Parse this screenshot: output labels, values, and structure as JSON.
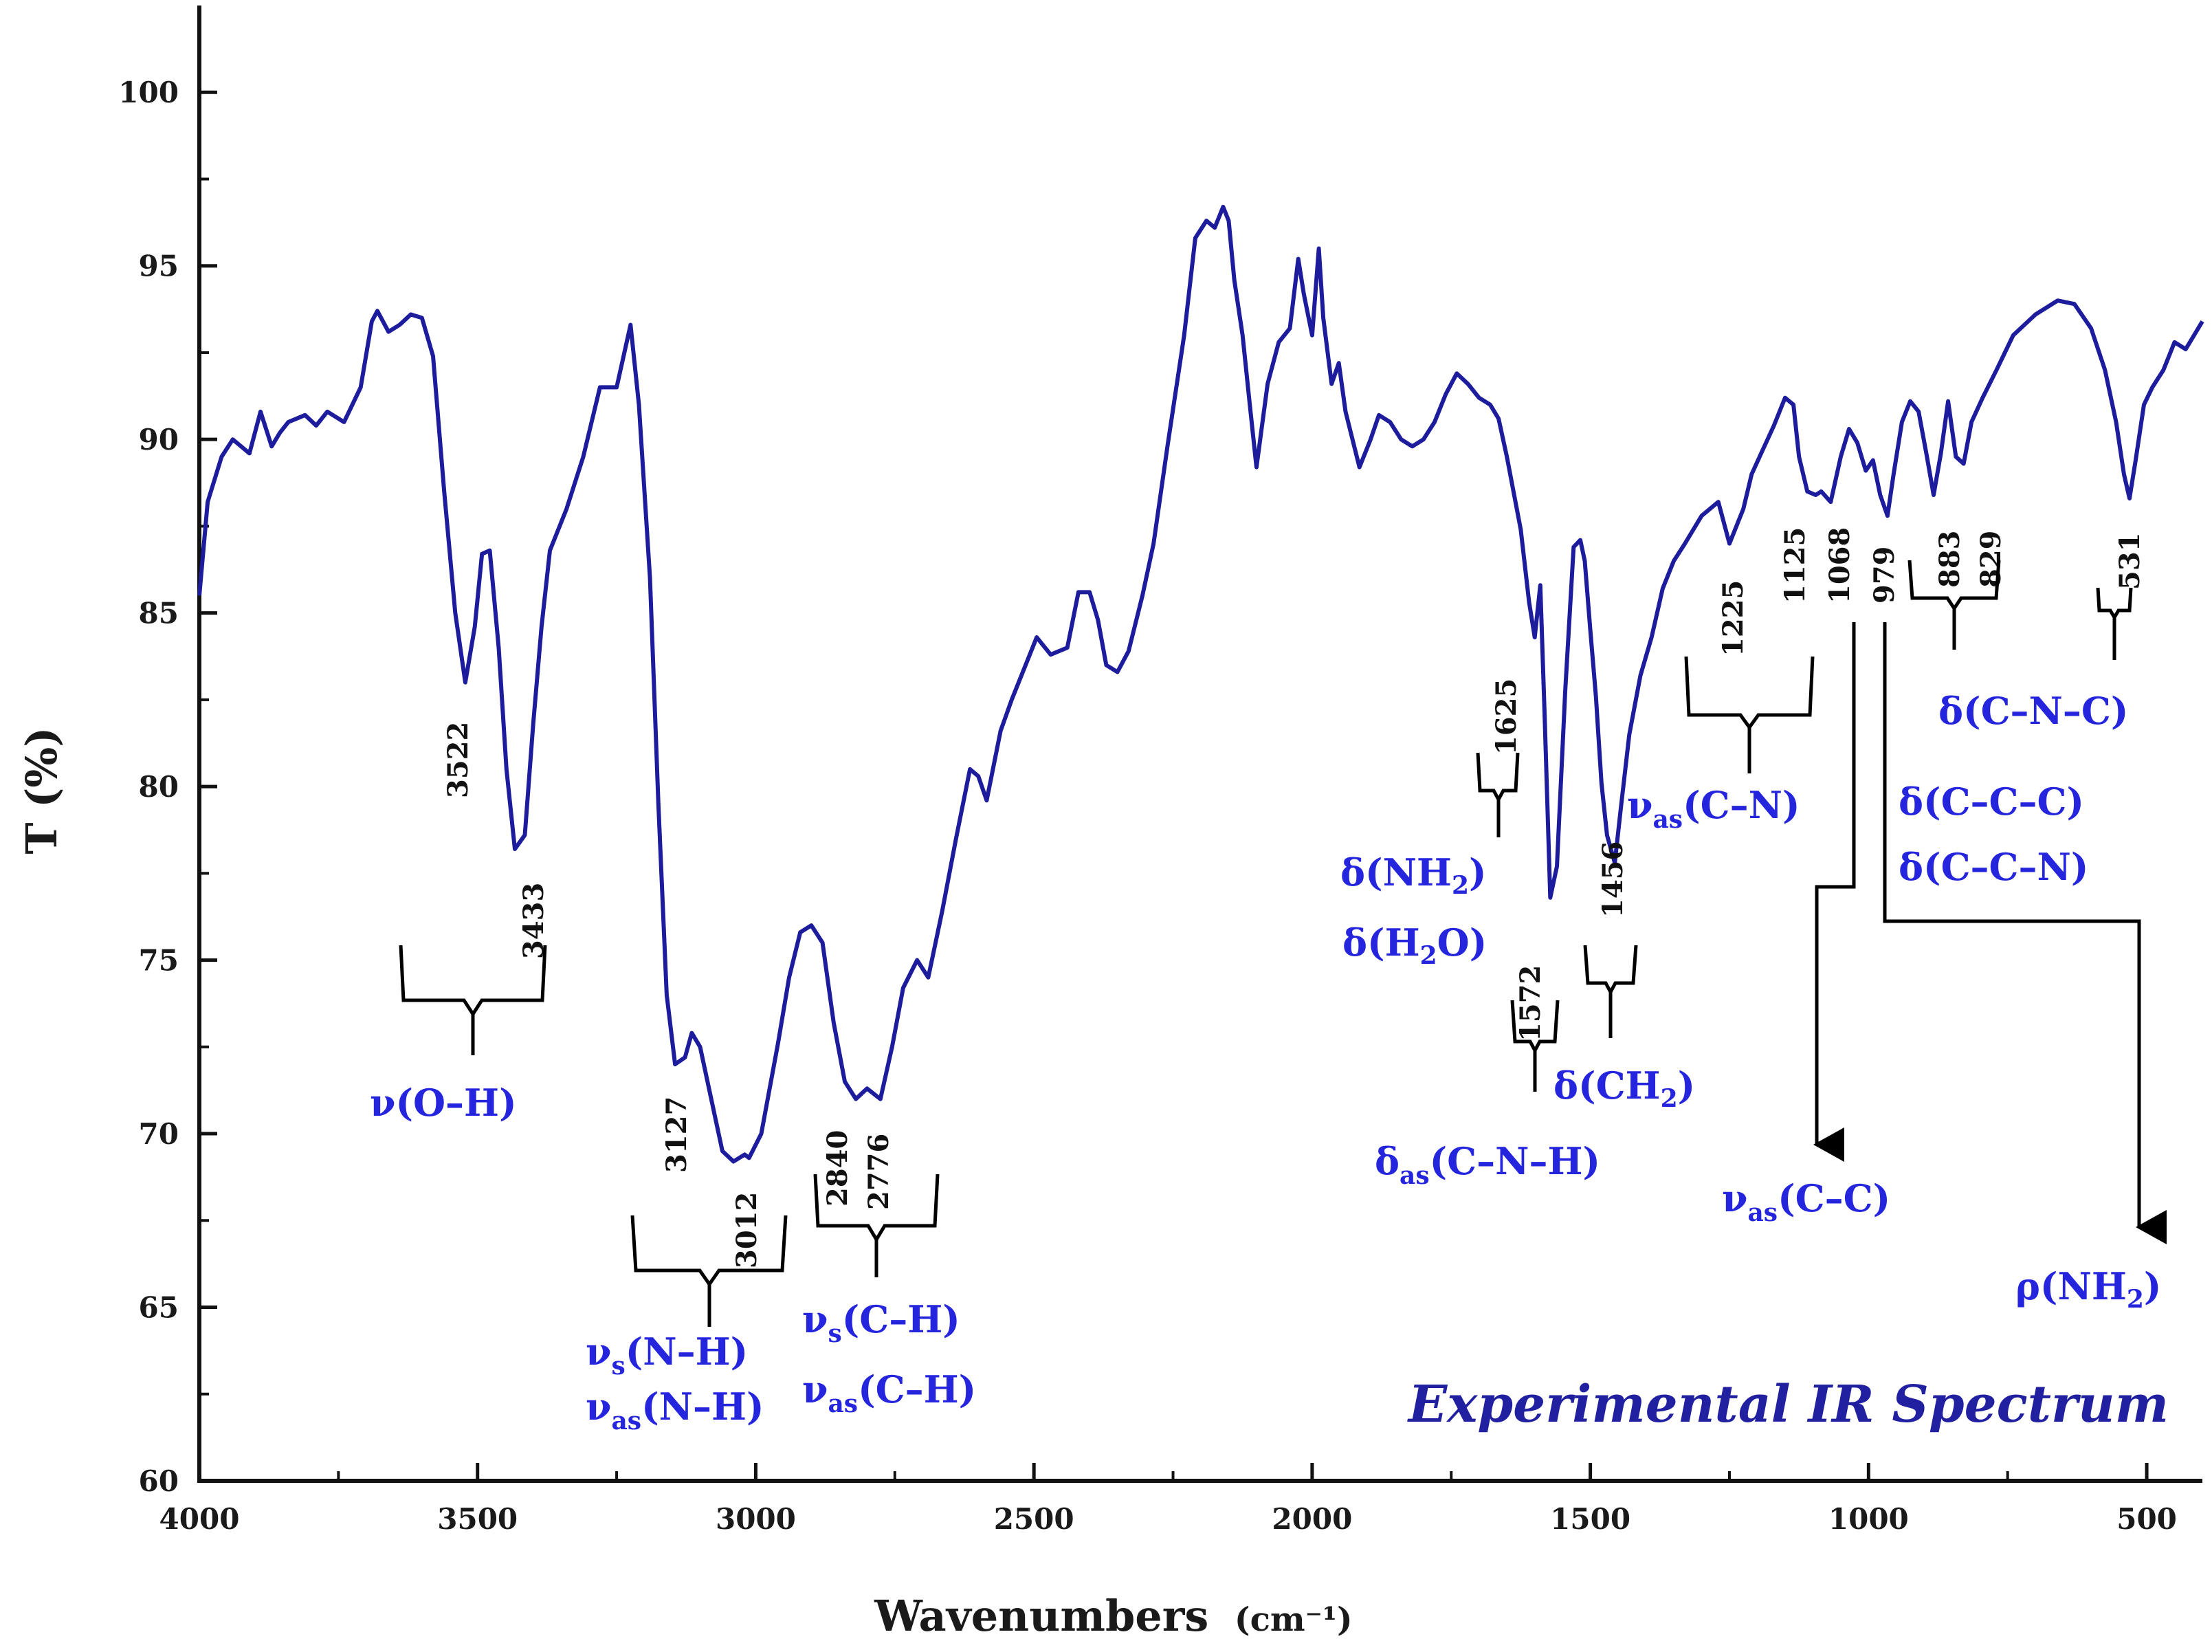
{
  "chart_data": {
    "type": "line",
    "title": "Experimental IR Spectrum",
    "xlabel": "Wavenumbers",
    "xlabel_unit": "(cm⁻¹)",
    "ylabel": "T (%)",
    "xlim": [
      4000,
      400
    ],
    "ylim": [
      60,
      102.5
    ],
    "x_ticks": [
      4000,
      3500,
      3000,
      2500,
      2000,
      1500,
      1000,
      500
    ],
    "y_ticks": [
      60,
      65,
      70,
      75,
      80,
      85,
      90,
      95,
      100
    ],
    "series": [
      {
        "name": "Experimental IR Spectrum",
        "color": "#1c1c9c",
        "x": [
          4000,
          3985,
          3960,
          3940,
          3910,
          3890,
          3880,
          3870,
          3855,
          3840,
          3810,
          3790,
          3770,
          3740,
          3710,
          3690,
          3680,
          3660,
          3640,
          3620,
          3600,
          3580,
          3560,
          3540,
          3522,
          3505,
          3492,
          3478,
          3462,
          3448,
          3433,
          3415,
          3400,
          3385,
          3370,
          3340,
          3310,
          3280,
          3250,
          3225,
          3210,
          3190,
          3175,
          3160,
          3145,
          3127,
          3115,
          3100,
          3080,
          3060,
          3040,
          3020,
          3012,
          2990,
          2960,
          2940,
          2920,
          2900,
          2880,
          2860,
          2840,
          2820,
          2800,
          2776,
          2755,
          2735,
          2710,
          2690,
          2665,
          2640,
          2615,
          2600,
          2585,
          2560,
          2540,
          2510,
          2495,
          2470,
          2440,
          2420,
          2400,
          2385,
          2370,
          2350,
          2330,
          2305,
          2285,
          2260,
          2230,
          2210,
          2190,
          2175,
          2160,
          2150,
          2140,
          2125,
          2112,
          2100,
          2080,
          2060,
          2040,
          2025,
          2015,
          2000,
          1988,
          1980,
          1965,
          1952,
          1940,
          1915,
          1895,
          1880,
          1860,
          1840,
          1820,
          1800,
          1780,
          1760,
          1740,
          1720,
          1700,
          1680,
          1665,
          1650,
          1625,
          1610,
          1600,
          1590,
          1582,
          1572,
          1560,
          1545,
          1530,
          1518,
          1510,
          1500,
          1490,
          1480,
          1470,
          1456,
          1445,
          1430,
          1410,
          1390,
          1370,
          1350,
          1330,
          1300,
          1270,
          1250,
          1225,
          1210,
          1190,
          1170,
          1150,
          1135,
          1125,
          1110,
          1095,
          1085,
          1068,
          1050,
          1035,
          1020,
          1005,
          992,
          979,
          966,
          955,
          940,
          925,
          910,
          895,
          883,
          870,
          857,
          843,
          829,
          815,
          795,
          770,
          740,
          700,
          660,
          630,
          600,
          575,
          555,
          541,
          531,
          520,
          505,
          490,
          470,
          450,
          430,
          415,
          400
        ],
        "y": [
          85.5,
          88.2,
          89.5,
          90.0,
          89.6,
          90.8,
          90.3,
          89.8,
          90.2,
          90.5,
          90.7,
          90.4,
          90.8,
          90.5,
          91.5,
          93.4,
          93.7,
          93.1,
          93.3,
          93.6,
          93.5,
          92.4,
          88.5,
          85.0,
          83.0,
          84.6,
          86.7,
          86.8,
          84.0,
          80.5,
          78.2,
          78.6,
          81.8,
          84.6,
          86.8,
          88.0,
          89.5,
          91.5,
          91.5,
          93.3,
          91.0,
          86.0,
          79.5,
          74.0,
          72.0,
          72.2,
          72.9,
          72.5,
          71.0,
          69.5,
          69.2,
          69.4,
          69.3,
          70.0,
          72.6,
          74.5,
          75.8,
          76.0,
          75.5,
          73.2,
          71.5,
          71.0,
          71.3,
          71.0,
          72.5,
          74.2,
          75.0,
          74.5,
          76.4,
          78.5,
          80.5,
          80.3,
          79.6,
          81.6,
          82.5,
          83.7,
          84.3,
          83.8,
          84.0,
          85.6,
          85.6,
          84.8,
          83.5,
          83.3,
          83.9,
          85.5,
          87.0,
          89.8,
          93.0,
          95.8,
          96.3,
          96.1,
          96.7,
          96.3,
          94.6,
          93.0,
          91.0,
          89.2,
          91.6,
          92.8,
          93.2,
          95.2,
          94.2,
          93.0,
          95.5,
          93.5,
          91.6,
          92.2,
          90.8,
          89.2,
          90.0,
          90.7,
          90.5,
          90.0,
          89.8,
          90.0,
          90.5,
          91.3,
          91.9,
          91.6,
          91.2,
          91.0,
          90.6,
          89.5,
          87.4,
          85.3,
          84.3,
          85.8,
          82.0,
          76.8,
          77.7,
          82.8,
          86.9,
          87.1,
          86.5,
          84.5,
          82.6,
          80.1,
          78.6,
          77.8,
          79.4,
          81.5,
          83.2,
          84.3,
          85.7,
          86.5,
          87.0,
          87.8,
          88.2,
          87.0,
          88.0,
          89.0,
          89.7,
          90.4,
          91.2,
          91.0,
          89.5,
          88.5,
          88.4,
          88.5,
          88.2,
          89.5,
          90.3,
          89.9,
          89.1,
          89.4,
          88.4,
          87.8,
          89.0,
          90.5,
          91.1,
          90.8,
          89.5,
          88.4,
          89.6,
          91.1,
          89.5,
          89.3,
          90.5,
          91.2,
          92.0,
          93.0,
          93.6,
          94.0,
          93.9,
          93.2,
          92.0,
          90.5,
          89.0,
          88.3,
          89.4,
          91.0,
          91.5,
          92.0,
          92.8,
          92.6,
          93.0,
          93.4
        ]
      }
    ],
    "peak_labels": [
      "3522",
      "3433",
      "3127",
      "3012",
      "2840",
      "2776",
      "1625",
      "1572",
      "1456",
      "1225",
      "1125",
      "1068",
      "979",
      "883",
      "829",
      "531"
    ],
    "assignments": {
      "oh": "ν(O–H)",
      "nh_s_sym": "ν",
      "nh_s_sub": "s",
      "nh_s_rest": "(N–H)",
      "nh_as_sym": "ν",
      "nh_as_sub": "as",
      "nh_as_rest": "(N–H)",
      "ch_s_sym": "ν",
      "ch_s_sub": "s",
      "ch_s_rest": "(C–H)",
      "ch_as_sym": "ν",
      "ch_as_sub": "as",
      "ch_as_rest": "(C–H)",
      "nh2_pre": "δ(NH",
      "nh2_sub": "2",
      "nh2_post": ")",
      "h2o_pre": "δ(H",
      "h2o_sub": "2",
      "h2o_post": "O)",
      "cnh_sym": "δ",
      "cnh_sub": "as",
      "cnh_rest": "(C–N–H)",
      "ch2_pre": "δ(CH",
      "ch2_sub": "2",
      "ch2_post": ")",
      "cn_sym": "ν",
      "cn_sub": "as",
      "cn_rest": "(C–N)",
      "cc_sym": "ν",
      "cc_sub": "as",
      "cc_rest": "(C–C)",
      "cnc": "δ(C–N–C)",
      "ccc": "δ(C–C–C)",
      "ccn": "δ(C–C–N)",
      "rho_pre": "ρ(NH",
      "rho_sub": "2",
      "rho_post": ")"
    }
  }
}
